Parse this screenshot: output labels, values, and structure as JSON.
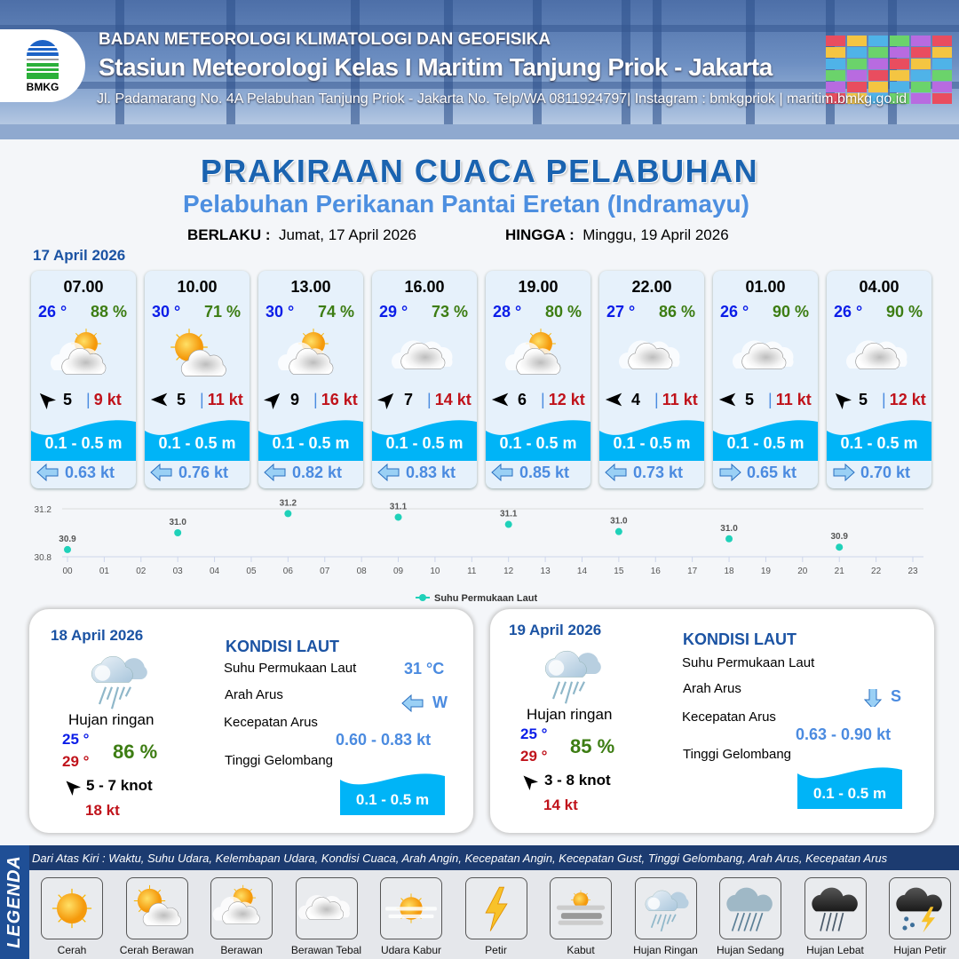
{
  "header": {
    "agency": "BADAN METEOROLOGI KLIMATOLOGI DAN GEOFISIKA",
    "station": "Stasiun Meteorologi Kelas I Maritim Tanjung Priok - Jakarta",
    "address": "Jl. Padamarang No. 4A Pelabuhan Tanjung Priok - Jakarta No. Telp/WA 0811924797| Instagram : bmkgpriok | maritim.bmkg.go.id",
    "logo_text": "BMKG"
  },
  "title": "PRAKIRAAN CUACA PELABUHAN",
  "subtitle": "Pelabuhan Perikanan Pantai Eretan (Indramayu)",
  "validity": {
    "from_label": "BERLAKU :",
    "from": "Jumat, 17 April 2026",
    "to_label": "HINGGA :",
    "to": "Minggu, 19 April 2026"
  },
  "day1_label": "17 April 2026",
  "colors": {
    "temp": "#0b1de8",
    "humidity": "#3d7d13",
    "gust": "#c0131b",
    "wave": "#00b4f7",
    "current": "#4b8be0",
    "title": "#1a63b0"
  },
  "forecast": [
    {
      "time": "07.00",
      "temp": "26 °",
      "hum": "88 %",
      "icon": "cerah-berawan",
      "wind_dir": "NW",
      "wind": "5",
      "gust": "9 kt",
      "wave": "0.1 - 0.5 m",
      "current_dir": "W",
      "current": "0.63 kt"
    },
    {
      "time": "10.00",
      "temp": "30 °",
      "hum": "71 %",
      "icon": "cerah-berawan-strong",
      "wind_dir": "W",
      "wind": "5",
      "gust": "11 kt",
      "wave": "0.1 - 0.5 m",
      "current_dir": "W",
      "current": "0.76 kt"
    },
    {
      "time": "13.00",
      "temp": "30 °",
      "hum": "74 %",
      "icon": "cerah-berawan",
      "wind_dir": "NE",
      "wind": "9",
      "gust": "16 kt",
      "wave": "0.1 - 0.5 m",
      "current_dir": "W",
      "current": "0.82 kt"
    },
    {
      "time": "16.00",
      "temp": "29 °",
      "hum": "73 %",
      "icon": "berawan",
      "wind_dir": "NE",
      "wind": "7",
      "gust": "14 kt",
      "wave": "0.1 - 0.5 m",
      "current_dir": "W",
      "current": "0.83 kt"
    },
    {
      "time": "19.00",
      "temp": "28 °",
      "hum": "80 %",
      "icon": "cerah-berawan",
      "wind_dir": "W",
      "wind": "6",
      "gust": "12 kt",
      "wave": "0.1 - 0.5 m",
      "current_dir": "W",
      "current": "0.85 kt"
    },
    {
      "time": "22.00",
      "temp": "27 °",
      "hum": "86 %",
      "icon": "berawan",
      "wind_dir": "W",
      "wind": "4",
      "gust": "11 kt",
      "wave": "0.1 - 0.5 m",
      "current_dir": "W",
      "current": "0.73 kt"
    },
    {
      "time": "01.00",
      "temp": "26 °",
      "hum": "90 %",
      "icon": "berawan",
      "wind_dir": "W",
      "wind": "5",
      "gust": "11 kt",
      "wave": "0.1 - 0.5 m",
      "current_dir": "E",
      "current": "0.65 kt"
    },
    {
      "time": "04.00",
      "temp": "26 °",
      "hum": "90 %",
      "icon": "berawan",
      "wind_dir": "NW",
      "wind": "5",
      "gust": "12 kt",
      "wave": "0.1 - 0.5 m",
      "current_dir": "E",
      "current": "0.70 kt"
    }
  ],
  "chart_data": {
    "type": "scatter",
    "x_ticks": [
      "00",
      "01",
      "02",
      "03",
      "04",
      "05",
      "06",
      "07",
      "08",
      "09",
      "10",
      "11",
      "12",
      "13",
      "14",
      "15",
      "16",
      "17",
      "18",
      "19",
      "20",
      "21",
      "22",
      "23"
    ],
    "y_ticks": [
      "30.8",
      "31.2"
    ],
    "ylim": [
      30.8,
      31.2
    ],
    "grid": "horizontal",
    "legend_placement": "bottom",
    "series": [
      {
        "name": "Suhu Permukaan Laut",
        "color": "#1fd1b9",
        "x": [
          0,
          3,
          6,
          9,
          12,
          15,
          18,
          21
        ],
        "y": [
          30.86,
          31.0,
          31.16,
          31.13,
          31.07,
          31.01,
          30.95,
          30.88
        ],
        "labels": [
          "30.9",
          "31.0",
          "31.2",
          "31.1",
          "31.1",
          "31.0",
          "31.0",
          "30.9"
        ]
      }
    ]
  },
  "days": [
    {
      "date": "18 April 2026",
      "condition": "Hujan ringan",
      "tmin": "25 °",
      "tmax": "29 °",
      "hum": "86 %",
      "wind_dir": "NW",
      "wind": "5  - 7 knot",
      "gust": "18 kt",
      "sea_title": "KONDISI LAUT",
      "sst_label": "Suhu Permukaan Laut",
      "sst": "31 °C",
      "cur_dir_label": "Arah Arus",
      "cur_dir": "W",
      "cur_speed_label": "Kecepatan Arus",
      "cur_speed": "0.60  - 0.83 kt",
      "wave_label": "Tinggi Gelombang",
      "wave": "0.1 - 0.5 m"
    },
    {
      "date": "19 April 2026",
      "condition": "Hujan ringan",
      "tmin": "25 °",
      "tmax": "29 °",
      "hum": "85 %",
      "wind_dir": "NW",
      "wind": "3  - 8 knot",
      "gust": "14 kt",
      "sea_title": "KONDISI LAUT",
      "sst_label": "Suhu Permukaan Laut",
      "cur_dir_label": "Arah Arus",
      "cur_dir": "S",
      "cur_speed_label": "Kecepatan Arus",
      "cur_speed": "0.63 - 0.90 kt",
      "wave_label": "Tinggi Gelombang",
      "wave": "0.1 - 0.5 m"
    }
  ],
  "legend": {
    "title": "LEGENDA",
    "description": "Dari Atas Kiri : Waktu, Suhu Udara, Kelembapan Udara, Kondisi Cuaca, Arah Angin, Kecepatan Angin, Kecepatan Gust, Tinggi Gelombang, Arah Arus, Kecepatan Arus",
    "items": [
      {
        "label": "Cerah",
        "icon": "cerah"
      },
      {
        "label": "Cerah Berawan",
        "icon": "cerah-berawan-strong"
      },
      {
        "label": "Berawan",
        "icon": "cerah-berawan"
      },
      {
        "label": "Berawan Tebal",
        "icon": "berawan"
      },
      {
        "label": "Udara Kabur",
        "icon": "udara-kabur"
      },
      {
        "label": "Petir",
        "icon": "petir"
      },
      {
        "label": "Kabut",
        "icon": "kabut"
      },
      {
        "label": "Hujan Ringan",
        "icon": "hujan-ringan"
      },
      {
        "label": "Hujan Sedang",
        "icon": "hujan-sedang"
      },
      {
        "label": "Hujan Lebat",
        "icon": "hujan-lebat"
      },
      {
        "label": "Hujan Petir",
        "icon": "hujan-petir"
      }
    ]
  }
}
